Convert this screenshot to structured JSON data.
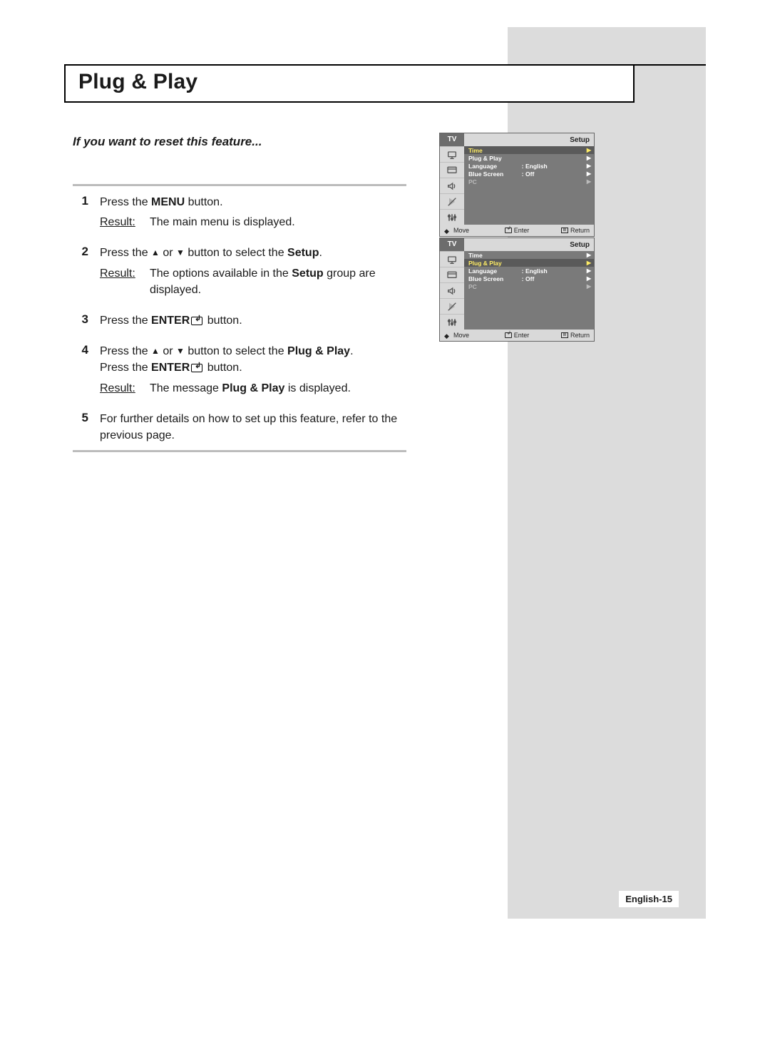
{
  "title": "Plug & Play",
  "subtitle": "If you want to reset this feature...",
  "result_label": "Result",
  "steps": [
    {
      "num": "1",
      "parts": [
        "Press the ",
        {
          "b": "MENU"
        },
        " button."
      ],
      "result": [
        "The main menu is displayed."
      ]
    },
    {
      "num": "2",
      "parts": [
        "Press the ",
        {
          "sym": "up"
        },
        " or ",
        {
          "sym": "down"
        },
        " button to select the ",
        {
          "b": "Setup"
        },
        "."
      ],
      "result": [
        "The options available in the ",
        {
          "b": "Setup"
        },
        " group are displayed."
      ]
    },
    {
      "num": "3",
      "parts": [
        "Press the ",
        {
          "b": "ENTER"
        },
        {
          "sym": "enter"
        },
        " button."
      ]
    },
    {
      "num": "4",
      "parts": [
        "Press the ",
        {
          "sym": "up"
        },
        " or ",
        {
          "sym": "down"
        },
        " button to select the ",
        {
          "b": "Plug & Play"
        },
        ".\nPress the ",
        {
          "b": "ENTER"
        },
        {
          "sym": "enter"
        },
        " button."
      ],
      "result": [
        "The message ",
        {
          "b": "Plug & Play"
        },
        " is displayed."
      ]
    },
    {
      "num": "5",
      "parts": [
        "For further details on how to set up this feature, refer to the previous page."
      ]
    }
  ],
  "osd_common": {
    "tv": "TV",
    "setup": "Setup",
    "foot_move": "Move",
    "foot_enter": "Enter",
    "foot_return": "Return"
  },
  "osd1": {
    "rows": [
      {
        "label": "Time",
        "val": "",
        "cls": "hl",
        "chev": true
      },
      {
        "label": "Plug & Play",
        "val": "",
        "cls": "norm",
        "chev": true
      },
      {
        "label": "Language",
        "colon": ":",
        "val": "English",
        "cls": "norm",
        "chev": true
      },
      {
        "label": "Blue Screen",
        "colon": ":",
        "val": "Off",
        "cls": "norm",
        "chev": true
      },
      {
        "label": "PC",
        "val": "",
        "cls": "dim",
        "chev": true
      }
    ]
  },
  "osd2": {
    "rows": [
      {
        "label": "Time",
        "val": "",
        "cls": "norm",
        "chev": true
      },
      {
        "label": "Plug & Play",
        "val": "",
        "cls": "hl",
        "chev": true
      },
      {
        "label": "Language",
        "colon": ":",
        "val": "English",
        "cls": "norm",
        "chev": true
      },
      {
        "label": "Blue Screen",
        "colon": ":",
        "val": "Off",
        "cls": "norm",
        "chev": true
      },
      {
        "label": "PC",
        "val": "",
        "cls": "dim",
        "chev": true
      }
    ]
  },
  "page_number": "English-15",
  "colors": {
    "sidebar_bg": "#dcdcdc",
    "osd_bg": "#7a7a7a",
    "osd_light": "#d9d9d9",
    "osd_hl_text": "#ffed66",
    "step_border": "#bcbcbc"
  }
}
